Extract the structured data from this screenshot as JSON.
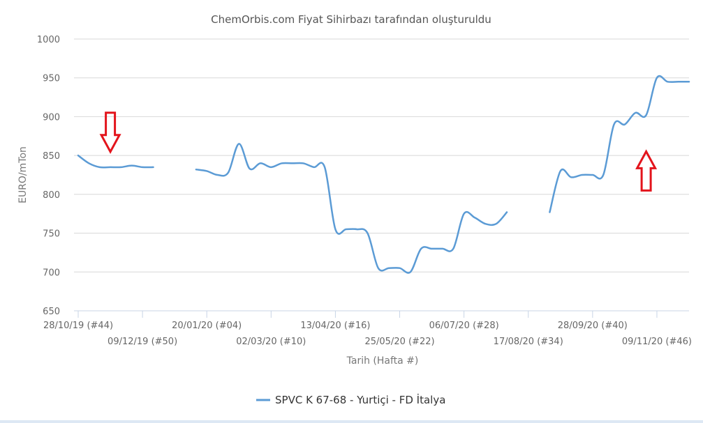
{
  "chart_data": {
    "type": "line",
    "title": "ChemOrbis.com Fiyat Sihirbazı tarafından oluşturuldu",
    "xlabel": "Tarih (Hafta #)",
    "ylabel": "EURO/mTon",
    "ylim": [
      650,
      1000
    ],
    "yticks": [
      650,
      700,
      750,
      800,
      850,
      900,
      950,
      1000
    ],
    "grid": true,
    "legend_position": "bottom",
    "x_tick_labels": [
      "28/10/19 (#44)",
      "09/12/19 (#50)",
      "20/01/20 (#04)",
      "02/03/20 (#10)",
      "13/04/20 (#16)",
      "25/05/20 (#22)",
      "06/07/20 (#28)",
      "17/08/20 (#34)",
      "28/09/20 (#40)",
      "09/11/20 (#46)"
    ],
    "series": [
      {
        "name": "SPVC K 67-68 - Yurtiçi - FD İtalya",
        "color": "#5b9bd5",
        "points": [
          [
            "2019-10-28",
            850
          ],
          [
            "2019-11-04",
            840
          ],
          [
            "2019-11-11",
            835
          ],
          [
            "2019-11-18",
            835
          ],
          [
            "2019-11-25",
            835
          ],
          [
            "2019-12-02",
            837
          ],
          [
            "2019-12-09",
            835
          ],
          [
            "2019-12-16",
            835
          ],
          [
            "2019-12-23",
            null
          ],
          [
            "2019-12-30",
            null
          ],
          [
            "2020-01-06",
            null
          ],
          [
            "2020-01-13",
            832
          ],
          [
            "2020-01-20",
            830
          ],
          [
            "2020-01-27",
            825
          ],
          [
            "2020-02-03",
            828
          ],
          [
            "2020-02-10",
            865
          ],
          [
            "2020-02-17",
            833
          ],
          [
            "2020-02-24",
            840
          ],
          [
            "2020-03-02",
            835
          ],
          [
            "2020-03-09",
            840
          ],
          [
            "2020-03-16",
            840
          ],
          [
            "2020-03-23",
            840
          ],
          [
            "2020-03-30",
            835
          ],
          [
            "2020-04-06",
            835
          ],
          [
            "2020-04-13",
            755
          ],
          [
            "2020-04-20",
            755
          ],
          [
            "2020-04-27",
            755
          ],
          [
            "2020-05-04",
            750
          ],
          [
            "2020-05-11",
            705
          ],
          [
            "2020-05-18",
            705
          ],
          [
            "2020-05-25",
            705
          ],
          [
            "2020-06-01",
            700
          ],
          [
            "2020-06-08",
            730
          ],
          [
            "2020-06-15",
            730
          ],
          [
            "2020-06-22",
            730
          ],
          [
            "2020-06-29",
            730
          ],
          [
            "2020-07-06",
            775
          ],
          [
            "2020-07-13",
            770
          ],
          [
            "2020-07-20",
            762
          ],
          [
            "2020-07-27",
            762
          ],
          [
            "2020-08-03",
            777
          ],
          [
            "2020-08-10",
            null
          ],
          [
            "2020-08-17",
            null
          ],
          [
            "2020-08-24",
            null
          ],
          [
            "2020-08-31",
            777
          ],
          [
            "2020-09-07",
            830
          ],
          [
            "2020-09-14",
            822
          ],
          [
            "2020-09-21",
            825
          ],
          [
            "2020-09-28",
            825
          ],
          [
            "2020-10-05",
            825
          ],
          [
            "2020-10-12",
            890
          ],
          [
            "2020-10-19",
            890
          ],
          [
            "2020-10-26",
            905
          ],
          [
            "2020-11-02",
            902
          ],
          [
            "2020-11-09",
            950
          ],
          [
            "2020-11-16",
            945
          ],
          [
            "2020-11-23",
            945
          ],
          [
            "2020-11-30",
            945
          ]
        ]
      }
    ],
    "annotations": [
      {
        "type": "arrow",
        "direction": "down",
        "color": "#e3141c",
        "at": [
          "2019-11-18",
          880
        ]
      },
      {
        "type": "arrow",
        "direction": "up",
        "color": "#e3141c",
        "at": [
          "2020-11-02",
          830
        ]
      }
    ]
  }
}
